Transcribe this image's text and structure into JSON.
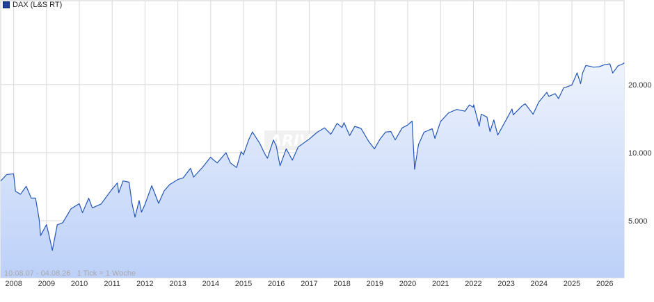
{
  "legend": {
    "label": "DAX (L&S RT)",
    "color": "#1f3f99"
  },
  "footer": {
    "range_text": "10.08.07 - 04.08.26   1 Tick = 1 Woche"
  },
  "watermark": "ARIVA",
  "colors": {
    "line": "#2255b8",
    "fill_top": "#eef3fd",
    "fill_bottom": "#bcd0f8",
    "grid": "#d8d8d8"
  },
  "chart_data": {
    "type": "area",
    "title": "",
    "xlabel": "",
    "ylabel": "",
    "y_scale": "log",
    "ylim": [
      2800,
      47000
    ],
    "xlim": [
      "2007-08-10",
      "2026-08-04"
    ],
    "grid": true,
    "legend_position": "top-left",
    "x_tick_labels": [
      "2008",
      "2009",
      "2010",
      "2011",
      "2012",
      "2013",
      "2014",
      "2015",
      "2016",
      "2017",
      "2018",
      "2019",
      "2020",
      "2021",
      "2022",
      "2023",
      "2024",
      "2025",
      "2026"
    ],
    "y_tick_values": [
      5000,
      10000,
      20000
    ],
    "y_tick_labels": [
      "5.000",
      "10.000",
      "20.000"
    ],
    "series": [
      {
        "name": "DAX (L&S RT)",
        "x": [
          "2007-08-10",
          "2007-10-15",
          "2007-12-31",
          "2008-01-22",
          "2008-03-17",
          "2008-05-20",
          "2008-07-15",
          "2008-09-01",
          "2008-10-10",
          "2008-10-27",
          "2008-12-31",
          "2009-01-30",
          "2009-03-06",
          "2009-04-30",
          "2009-06-30",
          "2009-09-30",
          "2009-12-31",
          "2010-02-05",
          "2010-04-15",
          "2010-05-25",
          "2010-08-31",
          "2010-12-31",
          "2011-02-28",
          "2011-03-15",
          "2011-05-02",
          "2011-07-08",
          "2011-08-10",
          "2011-09-12",
          "2011-10-28",
          "2011-11-23",
          "2011-12-31",
          "2012-03-16",
          "2012-06-01",
          "2012-07-31",
          "2012-09-30",
          "2012-12-31",
          "2013-02-28",
          "2013-05-22",
          "2013-06-24",
          "2013-09-30",
          "2013-12-31",
          "2014-01-31",
          "2014-03-14",
          "2014-06-20",
          "2014-08-08",
          "2014-10-16",
          "2014-12-05",
          "2014-12-31",
          "2015-02-27",
          "2015-04-10",
          "2015-06-30",
          "2015-08-24",
          "2015-09-24",
          "2015-11-30",
          "2015-12-31",
          "2016-02-11",
          "2016-04-20",
          "2016-06-27",
          "2016-08-31",
          "2016-12-31",
          "2017-03-31",
          "2017-06-20",
          "2017-08-29",
          "2017-11-07",
          "2017-12-31",
          "2018-01-23",
          "2018-03-26",
          "2018-05-22",
          "2018-07-31",
          "2018-10-26",
          "2018-12-27",
          "2019-02-28",
          "2019-04-30",
          "2019-06-28",
          "2019-08-15",
          "2019-10-31",
          "2019-12-31",
          "2020-02-19",
          "2020-03-18",
          "2020-04-30",
          "2020-06-30",
          "2020-09-30",
          "2020-10-30",
          "2020-12-31",
          "2021-03-31",
          "2021-06-30",
          "2021-09-30",
          "2021-11-17",
          "2021-12-31",
          "2022-01-05",
          "2022-03-07",
          "2022-03-29",
          "2022-05-31",
          "2022-07-05",
          "2022-08-16",
          "2022-09-29",
          "2022-12-30",
          "2023-03-06",
          "2023-03-20",
          "2023-06-30",
          "2023-07-31",
          "2023-10-27",
          "2023-12-29",
          "2024-03-28",
          "2024-04-19",
          "2024-06-28",
          "2024-08-05",
          "2024-09-30",
          "2024-12-31",
          "2025-02-28",
          "2025-04-07",
          "2025-04-30",
          "2025-06-05",
          "2025-08-29",
          "2025-10-31",
          "2025-12-31",
          "2026-02-27",
          "2026-03-31",
          "2026-05-29",
          "2026-07-31",
          "2026-08-04"
        ],
        "values": [
          7500,
          8000,
          8070,
          6750,
          6550,
          7100,
          6300,
          6300,
          5100,
          4300,
          4810,
          4300,
          3700,
          4800,
          4900,
          5650,
          5950,
          5430,
          6290,
          5700,
          5930,
          6900,
          7350,
          6650,
          7500,
          7400,
          5950,
          5190,
          6140,
          5460,
          5900,
          7150,
          5970,
          6770,
          7220,
          7610,
          7740,
          8530,
          7800,
          8590,
          9550,
          9300,
          9010,
          10000,
          9010,
          8600,
          10100,
          9800,
          11400,
          12350,
          11000,
          9900,
          9450,
          11380,
          10700,
          8750,
          10400,
          9270,
          10600,
          11480,
          12310,
          12880,
          12050,
          13480,
          12920,
          13560,
          11900,
          13070,
          12800,
          11200,
          10400,
          11500,
          12340,
          12400,
          11400,
          12860,
          13250,
          13790,
          8440,
          10860,
          12310,
          12760,
          11560,
          13720,
          15010,
          15530,
          15260,
          16250,
          15880,
          16270,
          13090,
          14800,
          14390,
          12400,
          13950,
          11970,
          13920,
          15600,
          14700,
          16150,
          16450,
          14800,
          16750,
          18490,
          17740,
          18240,
          17350,
          19320,
          19900,
          22550,
          20200,
          22500,
          24300,
          23900,
          24000,
          24490,
          24700,
          22500,
          24200,
          24800,
          25000
        ]
      }
    ]
  }
}
